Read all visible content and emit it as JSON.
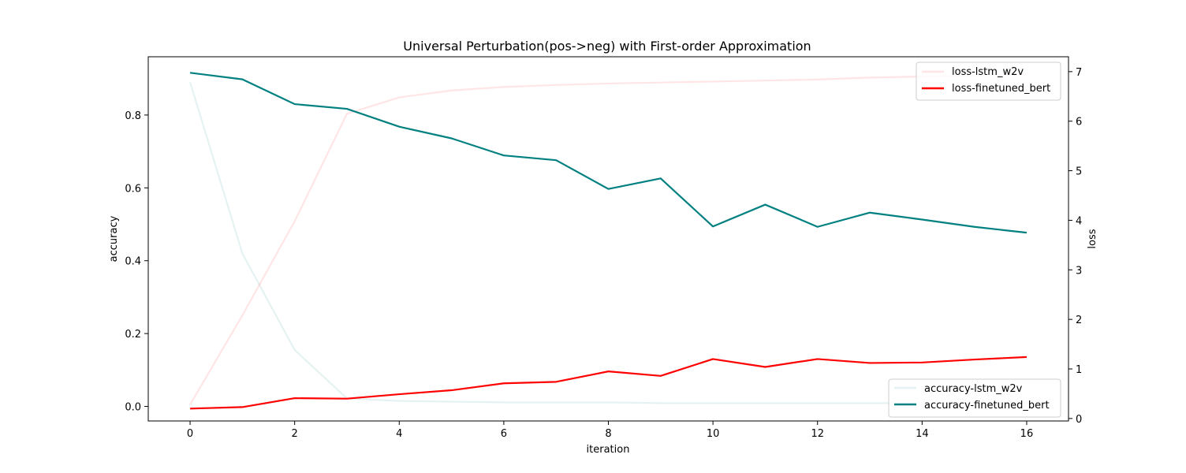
{
  "chart_data": {
    "type": "line",
    "title": "Universal Perturbation(pos->neg) with First-order Approximation",
    "xlabel": "iteration",
    "ylabel_left": "accuracy",
    "ylabel_right": "loss",
    "x": [
      0,
      1,
      2,
      3,
      4,
      5,
      6,
      7,
      8,
      9,
      10,
      11,
      12,
      13,
      14,
      15,
      16
    ],
    "xlim": [
      -0.8,
      16.8
    ],
    "xticks": [
      0,
      2,
      4,
      6,
      8,
      10,
      12,
      14,
      16
    ],
    "ylim_left": [
      -0.04,
      0.96
    ],
    "yticks_left": [
      0.0,
      0.2,
      0.4,
      0.6,
      0.8
    ],
    "ylim_right": [
      -0.05,
      7.3
    ],
    "yticks_right": [
      0,
      1,
      2,
      3,
      4,
      5,
      6,
      7
    ],
    "grid": false,
    "accuracy_series": [
      {
        "name": "accuracy-lstm_w2v",
        "color": "#008080",
        "opacity": 0.1,
        "axis": "left",
        "values": [
          0.89,
          0.42,
          0.155,
          0.022,
          0.015,
          0.013,
          0.011,
          0.011,
          0.011,
          0.009,
          0.009,
          0.009,
          0.009,
          0.009,
          0.009,
          0.009,
          0.009
        ]
      },
      {
        "name": "accuracy-finetuned_bert",
        "color": "#008080",
        "opacity": 1,
        "axis": "left",
        "values": [
          0.916,
          0.898,
          0.83,
          0.817,
          0.768,
          0.736,
          0.689,
          0.676,
          0.597,
          0.626,
          0.494,
          0.554,
          0.493,
          0.532,
          0.513,
          0.493,
          0.477
        ]
      }
    ],
    "loss_series": [
      {
        "name": "loss-lstm_w2v",
        "color": "#ff0000",
        "opacity": 0.1,
        "axis": "right",
        "values": [
          0.28,
          2.08,
          3.98,
          6.15,
          6.48,
          6.62,
          6.69,
          6.73,
          6.76,
          6.78,
          6.8,
          6.82,
          6.84,
          6.88,
          6.9,
          6.92,
          6.94
        ]
      },
      {
        "name": "loss-finetuned_bert",
        "color": "#ff0000",
        "opacity": 1,
        "axis": "right",
        "values": [
          0.2,
          0.23,
          0.41,
          0.4,
          0.49,
          0.57,
          0.71,
          0.74,
          0.95,
          0.86,
          1.2,
          1.04,
          1.2,
          1.12,
          1.13,
          1.19,
          1.24
        ]
      }
    ],
    "legend_accuracy_placement": "lower-right",
    "legend_loss_placement": "upper-right"
  }
}
